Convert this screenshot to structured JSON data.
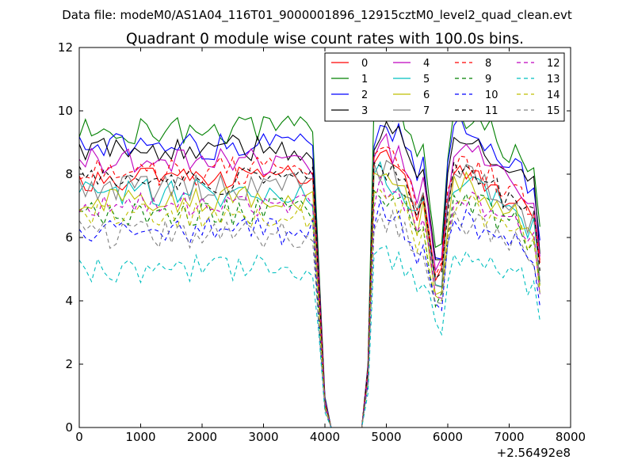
{
  "chart_data": {
    "type": "line",
    "suptitle": "Data file: modeM0/AS1A04_116T01_9000001896_12915cztM0_level2_quad_clean.evt",
    "title": "Quadrant 0 module wise count rates with 100.0s bins.",
    "xlabel": "",
    "ylabel": "",
    "x_offset_label": "+2.56492e8",
    "xlim": [
      0,
      8000
    ],
    "ylim": [
      0,
      12
    ],
    "x_ticks": [
      0,
      1000,
      2000,
      3000,
      4000,
      5000,
      6000,
      7000,
      8000
    ],
    "y_ticks": [
      0,
      2,
      4,
      6,
      8,
      10,
      12
    ],
    "grid": false,
    "legend_position": "top-right",
    "legend_columns": 4,
    "bin_seconds": 100,
    "x": [
      0,
      100,
      200,
      300,
      400,
      500,
      600,
      700,
      800,
      900,
      1000,
      1100,
      1200,
      1300,
      1400,
      1500,
      1600,
      1700,
      1800,
      1900,
      2000,
      2100,
      2200,
      2300,
      2400,
      2500,
      2600,
      2700,
      2800,
      2900,
      3000,
      3100,
      3200,
      3300,
      3400,
      3500,
      3600,
      3700,
      3800,
      3900,
      4000,
      4100,
      4200,
      4300,
      4400,
      4500,
      4600,
      4700,
      4800,
      4900,
      5000,
      5100,
      5200,
      5300,
      5400,
      5500,
      5600,
      5700,
      5800,
      5900,
      6000,
      6100,
      6200,
      6300,
      6400,
      6500,
      6600,
      6700,
      6800,
      6900,
      7000,
      7100,
      7200,
      7300,
      7400,
      7500
    ],
    "series": [
      {
        "name": "0",
        "color": "#ff0000",
        "dash": "solid",
        "base": 7.9,
        "peak": 8.4
      },
      {
        "name": "1",
        "color": "#008000",
        "dash": "solid",
        "base": 9.4,
        "peak": 10.1
      },
      {
        "name": "2",
        "color": "#0000ff",
        "dash": "solid",
        "base": 8.9,
        "peak": 9.5
      },
      {
        "name": "3",
        "color": "#000000",
        "dash": "solid",
        "base": 8.8,
        "peak": 9.3
      },
      {
        "name": "4",
        "color": "#bf00bf",
        "dash": "solid",
        "base": 8.4,
        "peak": 8.9
      },
      {
        "name": "5",
        "color": "#00bfbf",
        "dash": "solid",
        "base": 7.4,
        "peak": 7.9
      },
      {
        "name": "6",
        "color": "#bfbf00",
        "dash": "solid",
        "base": 7.2,
        "peak": 7.8
      },
      {
        "name": "7",
        "color": "#808080",
        "dash": "solid",
        "base": 7.6,
        "peak": 8.1
      },
      {
        "name": "8",
        "color": "#ff0000",
        "dash": "dashed",
        "base": 8.1,
        "peak": 8.6
      },
      {
        "name": "9",
        "color": "#008000",
        "dash": "dashed",
        "base": 6.8,
        "peak": 7.3
      },
      {
        "name": "10",
        "color": "#0000ff",
        "dash": "dashed",
        "base": 6.2,
        "peak": 6.7
      },
      {
        "name": "11",
        "color": "#000000",
        "dash": "dashed",
        "base": 7.8,
        "peak": 8.3
      },
      {
        "name": "12",
        "color": "#bf00bf",
        "dash": "dashed",
        "base": 7.0,
        "peak": 7.5
      },
      {
        "name": "13",
        "color": "#00bfbf",
        "dash": "dashed",
        "base": 5.0,
        "peak": 5.5
      },
      {
        "name": "14",
        "color": "#bfbf00",
        "dash": "dashed",
        "base": 6.7,
        "peak": 7.2
      },
      {
        "name": "15",
        "color": "#808080",
        "dash": "dashed",
        "base": 6.1,
        "peak": 6.6
      }
    ]
  }
}
